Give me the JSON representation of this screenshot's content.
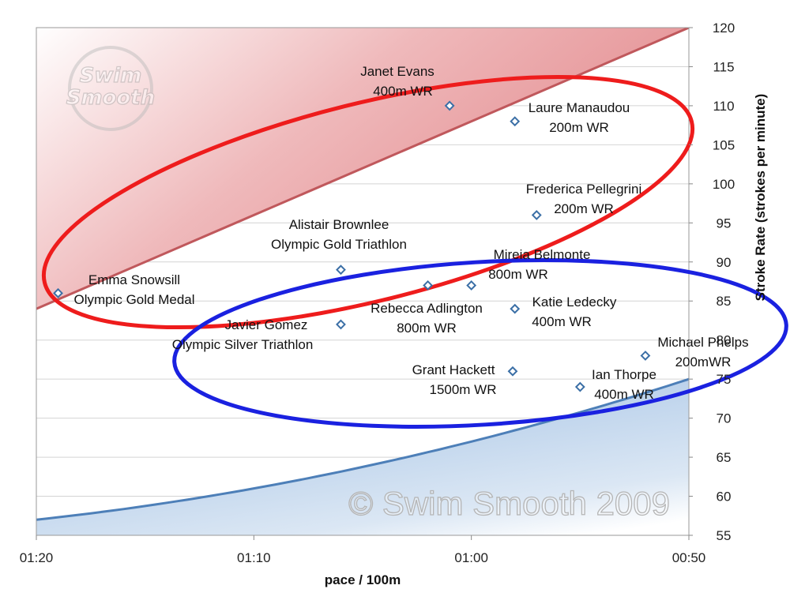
{
  "chart_data": {
    "type": "scatter",
    "xlabel": "pace / 100m",
    "ylabel": "Stroke Rate (strokes per minute)",
    "x_unit": "seconds per 100m (shown as mm:ss)",
    "xlim": [
      80,
      50
    ],
    "x_reversed": true,
    "ylim": [
      55,
      120
    ],
    "x_ticks": [
      {
        "value": 80,
        "label": "01:20"
      },
      {
        "value": 70,
        "label": "01:10"
      },
      {
        "value": 60,
        "label": "01:00"
      },
      {
        "value": 50,
        "label": "00:50"
      }
    ],
    "y_ticks": [
      55,
      60,
      65,
      70,
      75,
      80,
      85,
      90,
      95,
      100,
      105,
      110,
      115,
      120
    ],
    "y_axis_position": "right",
    "grid": {
      "horizontal": true,
      "vertical": false
    },
    "points": [
      {
        "name": "Emma Snowsill",
        "note": "Olympic Gold Medal",
        "x": 79.0,
        "y": 86
      },
      {
        "name": "Javier Gomez",
        "note": "Olympic Silver Triathlon",
        "x": 66.0,
        "y": 82
      },
      {
        "name": "Alistair Brownlee",
        "note": "Olympic Gold Triathlon",
        "x": 66.0,
        "y": 89
      },
      {
        "name": "Janet Evans",
        "note": "400m WR",
        "x": 61.0,
        "y": 110
      },
      {
        "name": "Rebecca Adlington",
        "note": "800m WR",
        "x": 62.0,
        "y": 87
      },
      {
        "name": "Mireia Belmonte",
        "note": "800m WR",
        "x": 60.0,
        "y": 87
      },
      {
        "name": "Laure Manaudou",
        "note": "200m WR",
        "x": 58.0,
        "y": 108
      },
      {
        "name": "Katie Ledecky",
        "note": "400m WR",
        "x": 58.0,
        "y": 84
      },
      {
        "name": "Grant Hackett",
        "note": "1500m WR",
        "x": 58.1,
        "y": 76
      },
      {
        "name": "Frederica Pellegrini",
        "note": "200m WR",
        "x": 57.0,
        "y": 96
      },
      {
        "name": "Ian Thorpe",
        "note": "400m WR",
        "x": 55.0,
        "y": 74
      },
      {
        "name": "Michael Phelps",
        "note": "200mWR",
        "x": 52.0,
        "y": 78
      }
    ],
    "regions": [
      {
        "name": "upper-red-zone",
        "color": "#d9787b",
        "boundary": [
          [
            80,
            84
          ],
          [
            50,
            120
          ]
        ]
      },
      {
        "name": "lower-blue-zone",
        "color": "#8fb1da",
        "boundary": [
          [
            80,
            57
          ],
          [
            70,
            61
          ],
          [
            60,
            67
          ],
          [
            50,
            75
          ]
        ]
      }
    ],
    "ellipses": [
      {
        "name": "red-ellipse",
        "color": "#ee1c1c"
      },
      {
        "name": "blue-ellipse",
        "color": "#1a21e0"
      }
    ]
  },
  "watermark": "© Swim Smooth 2009",
  "logo": {
    "line1": "Swim",
    "line2": "Smooth"
  },
  "colors": {
    "marker": "#3b6fa6",
    "red_ellipse": "#ee1c1c",
    "blue_ellipse": "#1a21e0",
    "red_zone": "#d9787b",
    "blue_zone": "#8fb1da",
    "grid": "#d4d4d4"
  }
}
